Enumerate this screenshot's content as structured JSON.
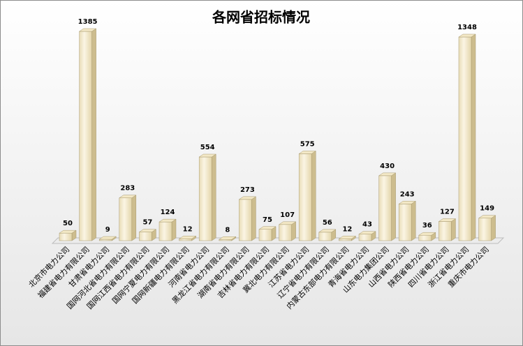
{
  "chart_data": {
    "type": "bar3d",
    "title": "各网省招标情况",
    "categories": [
      "北京市电力公司",
      "福建省电力有限公司",
      "甘肃省电力公司",
      "国网河北省电力有限公司",
      "国网江西省电力有限公司",
      "国网宁夏电力有限公司",
      "国网新疆电力有限公司",
      "河南省电力公司",
      "黑龙江省电力有限公司",
      "湖南省电力有限公司",
      "吉林省电力有限公司",
      "冀北电力有限公司",
      "江苏省电力公司",
      "辽宁省电力有限公司",
      "内蒙古东部电力有限公司",
      "青海省电力公司",
      "山东电力集团公司",
      "山西省电力公司",
      "陕西省电力公司",
      "四川省电力公司",
      "浙江省电力公司",
      "重庆市电力公司"
    ],
    "values": [
      50,
      1385,
      9,
      283,
      57,
      124,
      12,
      554,
      8,
      273,
      75,
      107,
      575,
      56,
      12,
      43,
      430,
      243,
      36,
      127,
      1348,
      149
    ],
    "color": "#f3e8c6"
  }
}
